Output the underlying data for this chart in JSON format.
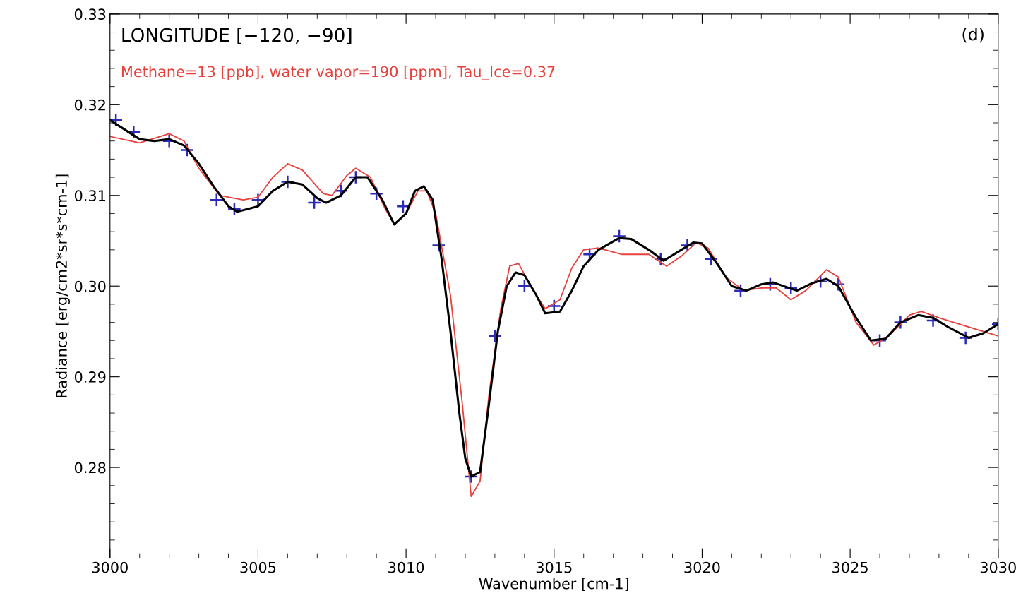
{
  "chart_data": {
    "type": "line",
    "title": "LONGITUDE [−120, −90]",
    "xlabel": "Wavenumber [cm-1]",
    "ylabel": "Radiance [erg/cm2*sr*s*cm-1]",
    "annotations": [
      "(d)",
      "Methane=13 [ppb], water vapor=190 [ppm], Tau_Ice=0.37"
    ],
    "xlim": [
      3000,
      3030
    ],
    "xticks": [
      3000,
      3005,
      3010,
      3015,
      3020,
      3025,
      3030
    ],
    "ylim": [
      0.27,
      0.33
    ],
    "yticks": [
      0.28,
      0.29,
      {
        "value": 0.3,
        "label": "0.30"
      },
      0.31,
      0.32,
      0.33
    ],
    "grid": false,
    "legend": false,
    "series": [
      {
        "color": "#000000",
        "x": [
          3000,
          3001,
          3001.5,
          3002,
          3002.5,
          3003,
          3003.5,
          3004,
          3004.3,
          3005,
          3005.5,
          3006,
          3006.5,
          3007,
          3007.3,
          3007.8,
          3008.3,
          3008.7,
          3009.2,
          3009.6,
          3010,
          3010.3,
          3010.6,
          3010.9,
          3011.2,
          3011.5,
          3011.8,
          3012,
          3012.2,
          3012.5,
          3012.8,
          3013.1,
          3013.4,
          3013.7,
          3014,
          3014.4,
          3014.7,
          3015.2,
          3015.6,
          3016,
          3016.5,
          3017.2,
          3017.6,
          3018.2,
          3018.7,
          3019.2,
          3019.7,
          3020,
          3020.5,
          3021,
          3021.5,
          3022,
          3022.4,
          3023.2,
          3023.7,
          3024.2,
          3024.6,
          3025.2,
          3025.7,
          3026.2,
          3026.7,
          3027.3,
          3027.8,
          3028.3,
          3029,
          3029.5,
          3030
        ],
        "values": [
          0.3183,
          0.3162,
          0.316,
          0.3162,
          0.3155,
          0.3135,
          0.311,
          0.3088,
          0.3082,
          0.3088,
          0.3105,
          0.3115,
          0.3112,
          0.3097,
          0.3092,
          0.31,
          0.312,
          0.312,
          0.3095,
          0.3068,
          0.308,
          0.3105,
          0.311,
          0.3095,
          0.303,
          0.295,
          0.286,
          0.281,
          0.279,
          0.2795,
          0.287,
          0.295,
          0.3,
          0.3015,
          0.3012,
          0.299,
          0.297,
          0.2972,
          0.2995,
          0.3022,
          0.304,
          0.3053,
          0.3052,
          0.304,
          0.3028,
          0.3038,
          0.3048,
          0.3047,
          0.3025,
          0.3,
          0.2995,
          0.3002,
          0.3004,
          0.2995,
          0.3003,
          0.3008,
          0.3,
          0.2965,
          0.294,
          0.2942,
          0.296,
          0.2968,
          0.2965,
          0.2955,
          0.2943,
          0.2948,
          0.2958
        ]
      },
      {
        "color": "#e8413c",
        "x": [
          3000,
          3001,
          3002,
          3002.5,
          3003,
          3003.7,
          3004.5,
          3005,
          3005.5,
          3006,
          3006.5,
          3007.2,
          3007.5,
          3008,
          3008.3,
          3008.8,
          3009.3,
          3009.6,
          3010,
          3010.4,
          3010.7,
          3011,
          3011.5,
          3011.9,
          3012.2,
          3012.5,
          3012.8,
          3013.2,
          3013.5,
          3013.8,
          3014.3,
          3014.7,
          3015.2,
          3015.6,
          3016,
          3016.5,
          3017.3,
          3018.2,
          3018.8,
          3019.3,
          3019.8,
          3020.2,
          3020.8,
          3021.4,
          3022,
          3022.5,
          3023,
          3023.5,
          3024.2,
          3024.6,
          3025.2,
          3025.8,
          3026.3,
          3027,
          3027.4,
          3028,
          3029,
          3030
        ],
        "values": [
          0.3165,
          0.3158,
          0.3168,
          0.316,
          0.313,
          0.31,
          0.3095,
          0.3098,
          0.312,
          0.3135,
          0.3128,
          0.3102,
          0.31,
          0.3122,
          0.313,
          0.312,
          0.3085,
          0.3068,
          0.308,
          0.3105,
          0.3105,
          0.308,
          0.299,
          0.287,
          0.2768,
          0.2785,
          0.288,
          0.2975,
          0.3022,
          0.3025,
          0.2995,
          0.2975,
          0.2985,
          0.302,
          0.304,
          0.3042,
          0.3035,
          0.3035,
          0.3022,
          0.3033,
          0.3048,
          0.3042,
          0.301,
          0.2995,
          0.2998,
          0.2998,
          0.2985,
          0.2995,
          0.3018,
          0.301,
          0.296,
          0.2935,
          0.2945,
          0.2968,
          0.2972,
          0.2965,
          0.2955,
          0.2945
        ]
      },
      {
        "type": "scatter",
        "color": "#2b2bb8",
        "marker": "cross",
        "x": [
          3000.2,
          3000.8,
          3002,
          3002.6,
          3003.6,
          3004.2,
          3005,
          3006,
          3006.9,
          3007.8,
          3008.3,
          3009,
          3009.9,
          3011.1,
          3012.2,
          3013,
          3014,
          3015,
          3016.2,
          3017.2,
          3018.6,
          3019.5,
          3020.3,
          3021.3,
          3022.3,
          3023,
          3024,
          3024.6,
          3026,
          3026.7,
          3027.8,
          3028.9,
          3030
        ],
        "values": [
          0.3183,
          0.317,
          0.316,
          0.315,
          0.3095,
          0.3085,
          0.3095,
          0.3115,
          0.3092,
          0.3105,
          0.312,
          0.3102,
          0.3088,
          0.3045,
          0.279,
          0.2945,
          0.3,
          0.2978,
          0.3035,
          0.3055,
          0.303,
          0.3045,
          0.303,
          0.2995,
          0.3002,
          0.2998,
          0.3005,
          0.3002,
          0.294,
          0.296,
          0.2962,
          0.2943,
          0.2958
        ]
      }
    ]
  }
}
